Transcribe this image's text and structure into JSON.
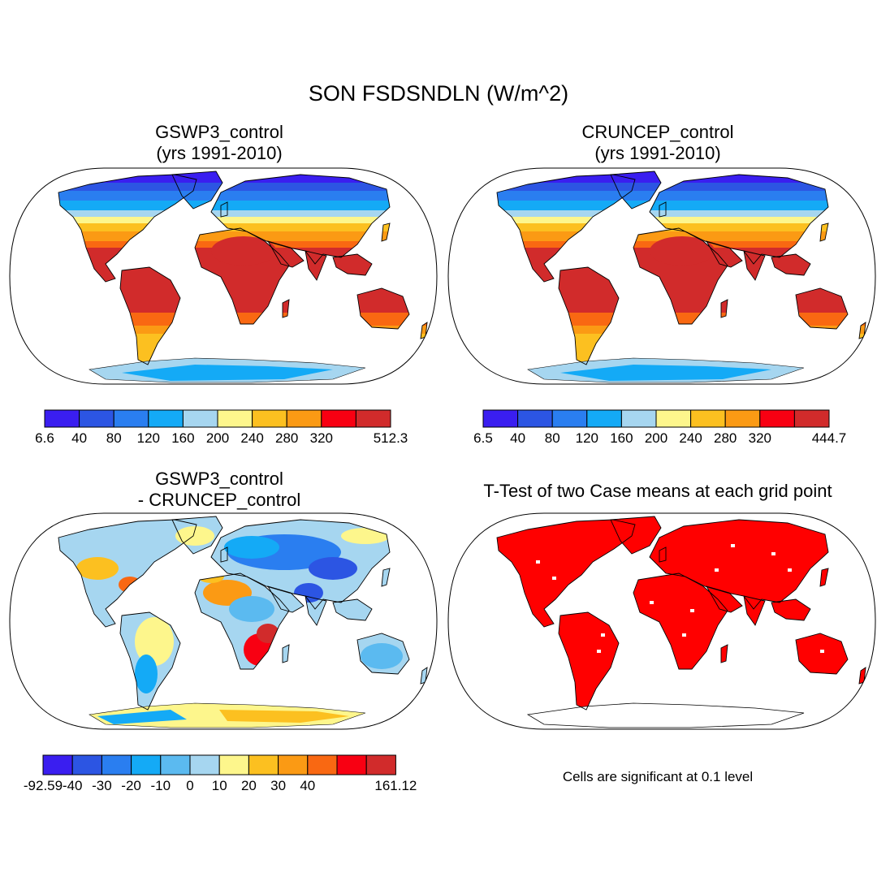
{
  "title": "SON FSDSNDLN (W/m^2)",
  "colors": {
    "land_abs": [
      "#3a1ef0",
      "#2c55e3",
      "#2a7ef0",
      "#14aaf6",
      "#a6d6f0",
      "#fdf68c",
      "#fcc020",
      "#fb9a14",
      "#f96812",
      "#f80012",
      "#d12b2b"
    ],
    "diff": [
      "#3a1ef0",
      "#2c55e3",
      "#2a7ef0",
      "#14aaf6",
      "#5bbaf0",
      "#a6d6f0",
      "#fdf68c",
      "#fcc020",
      "#fb9a14",
      "#f96812",
      "#f80012",
      "#d12b2b"
    ],
    "significant": "#ff0000",
    "coast": "#000000"
  },
  "panels": [
    {
      "id": "gswp3",
      "title_lines": [
        "GSWP3_control",
        "(yrs 1991-2010)"
      ],
      "colorbar": {
        "labels": [
          "6.6",
          "40",
          "80",
          "120",
          "160",
          "200",
          "240",
          "280",
          "320",
          "512.3"
        ],
        "boxes": 10
      }
    },
    {
      "id": "cruncep",
      "title_lines": [
        "CRUNCEP_control",
        "(yrs 1991-2010)"
      ],
      "colorbar": {
        "labels": [
          "6.5",
          "40",
          "80",
          "120",
          "160",
          "200",
          "240",
          "280",
          "320",
          "444.7"
        ],
        "boxes": 10
      }
    },
    {
      "id": "difference",
      "title_lines": [
        "GSWP3_control",
        "- CRUNCEP_control"
      ],
      "colorbar": {
        "labels": [
          "-92.59",
          "-40",
          "-30",
          "-20",
          "-10",
          "0",
          "10",
          "20",
          "30",
          "40",
          "161.12"
        ],
        "boxes": 12
      }
    },
    {
      "id": "ttest",
      "title_lines": [
        "T-Test of two Case means at each grid point"
      ],
      "note": "Cells are significant at 0.1 level"
    }
  ]
}
